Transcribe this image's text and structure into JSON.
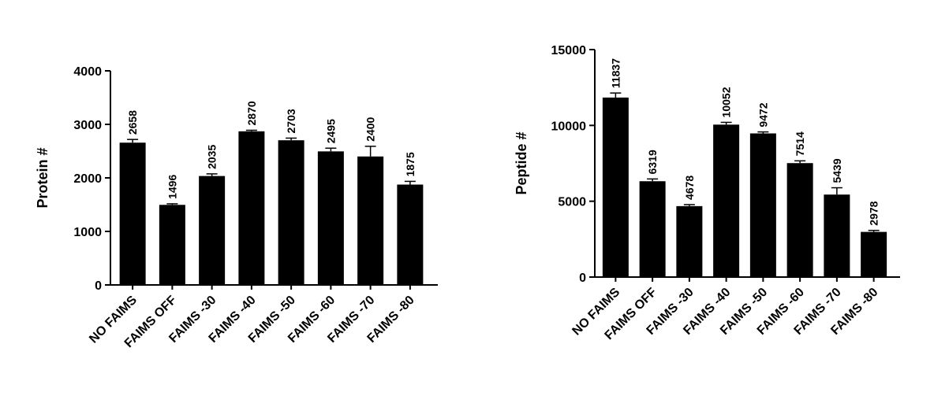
{
  "chart_data": [
    {
      "type": "bar",
      "y_label": "Protein #",
      "categories": [
        "NO FAIMS",
        "FAIMS OFF",
        "FAIMS -30",
        "FAIMS -40",
        "FAIMS -50",
        "FAIMS -60",
        "FAIMS -70",
        "FAIMS -80"
      ],
      "values": [
        2658,
        1496,
        2035,
        2870,
        2703,
        2495,
        2400,
        1875
      ],
      "errors": [
        60,
        20,
        40,
        20,
        40,
        60,
        190,
        60
      ],
      "color": "#000000",
      "ylim": [
        0,
        4000
      ],
      "yticks": [
        0,
        1000,
        2000,
        3000,
        4000
      ]
    },
    {
      "type": "bar",
      "y_label": "Peptide #",
      "categories": [
        "NO FAIMS",
        "FAIMS OFF",
        "FAIMS -30",
        "FAIMS -40",
        "FAIMS -50",
        "FAIMS -60",
        "FAIMS -70",
        "FAIMS -80"
      ],
      "values": [
        11837,
        6319,
        4678,
        10052,
        9472,
        7514,
        5439,
        2978
      ],
      "errors": [
        300,
        150,
        100,
        150,
        100,
        150,
        450,
        100
      ],
      "color": "#000000",
      "ylim": [
        0,
        15000
      ],
      "yticks": [
        0,
        5000,
        10000,
        15000
      ]
    }
  ]
}
